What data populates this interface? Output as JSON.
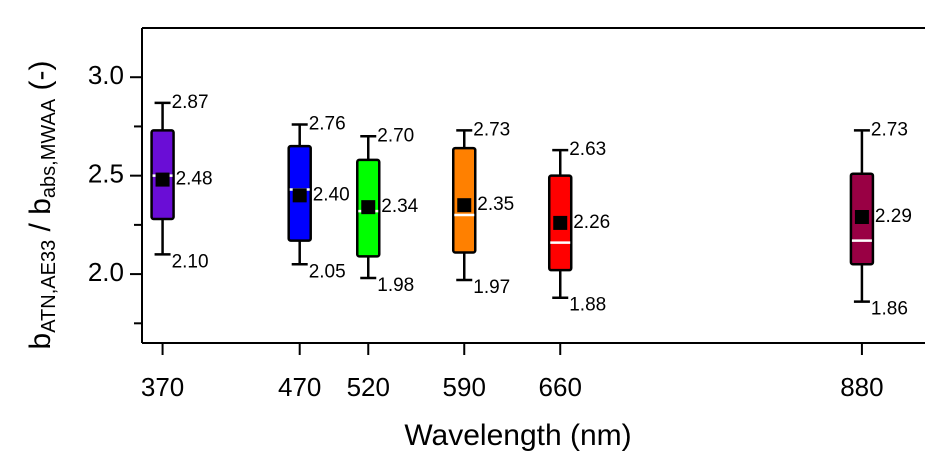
{
  "chart_data": {
    "type": "box",
    "xlabel": "Wavelength (nm)",
    "ylabel": {
      "b1": "b",
      "sub1": "ATN,AE33",
      "mid": " / b",
      "sub2": "abs,MWAA",
      "end": " (-)"
    },
    "xlim": [
      355,
      926
    ],
    "xticks": [
      370,
      470,
      520,
      590,
      660,
      880
    ],
    "ylim": [
      1.65,
      3.25
    ],
    "yticks": [
      {
        "value": 2,
        "label": "2.0"
      },
      {
        "value": 2.5,
        "label": "2.5"
      },
      {
        "value": 3,
        "label": "3.0"
      }
    ],
    "yminor": [
      1.75,
      2.25,
      2.75
    ],
    "boxes": [
      {
        "x": 370,
        "color": "#6a0dd6",
        "min": 2.1,
        "q1": 2.28,
        "median": 2.5,
        "q3": 2.73,
        "max": 2.87,
        "mean": 2.48,
        "value_labels": {
          "max": "2.87",
          "mean": "2.48",
          "min": "2.10"
        }
      },
      {
        "x": 470,
        "color": "#0000ff",
        "min": 2.05,
        "q1": 2.17,
        "median": 2.43,
        "q3": 2.65,
        "max": 2.76,
        "mean": 2.4,
        "value_labels": {
          "max": "2.76",
          "mean": "2.40",
          "min": "2.05"
        }
      },
      {
        "x": 520,
        "color": "#00ff00",
        "min": 1.98,
        "q1": 2.09,
        "median": 2.32,
        "q3": 2.58,
        "max": 2.7,
        "mean": 2.34,
        "value_labels": {
          "max": "2.70",
          "mean": "2.34",
          "min": "1.98"
        }
      },
      {
        "x": 590,
        "color": "#ff8000",
        "min": 1.97,
        "q1": 2.11,
        "median": 2.3,
        "q3": 2.64,
        "max": 2.73,
        "mean": 2.35,
        "value_labels": {
          "max": "2.73",
          "mean": "2.35",
          "min": "1.97"
        }
      },
      {
        "x": 660,
        "color": "#ff0000",
        "min": 1.88,
        "q1": 2.02,
        "median": 2.16,
        "q3": 2.5,
        "max": 2.63,
        "mean": 2.26,
        "value_labels": {
          "max": "2.63",
          "mean": "2.26",
          "min": "1.88"
        }
      },
      {
        "x": 880,
        "color": "#990044",
        "min": 1.86,
        "q1": 2.05,
        "median": 2.17,
        "q3": 2.51,
        "max": 2.73,
        "mean": 2.29,
        "value_labels": {
          "max": "2.73",
          "mean": "2.29",
          "min": "1.86"
        }
      }
    ]
  }
}
